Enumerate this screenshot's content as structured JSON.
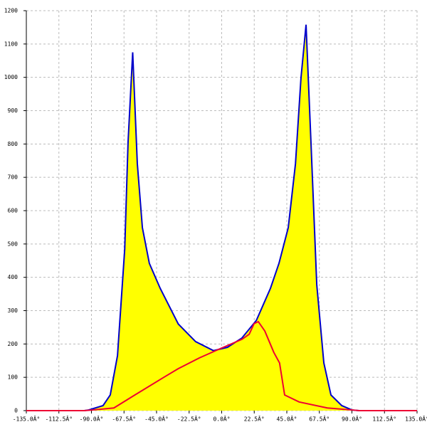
{
  "chart_data": {
    "type": "area-line",
    "xlim": [
      -135,
      135
    ],
    "ylim": [
      0,
      1200
    ],
    "xticks": [
      {
        "value": -135,
        "label": "-135.0Â°"
      },
      {
        "value": -112.5,
        "label": "-112.5Â°"
      },
      {
        "value": -90,
        "label": "-90.0Â°"
      },
      {
        "value": -67.5,
        "label": "-67.5Â°"
      },
      {
        "value": -45,
        "label": "-45.0Â°"
      },
      {
        "value": -22.5,
        "label": "-22.5Â°"
      },
      {
        "value": 0,
        "label": "0.0Â°"
      },
      {
        "value": 22.5,
        "label": "22.5Â°"
      },
      {
        "value": 45,
        "label": "45.0Â°"
      },
      {
        "value": 67.5,
        "label": "67.5Â°"
      },
      {
        "value": 90,
        "label": "90.0Â°"
      },
      {
        "value": 112.5,
        "label": "112.5Â°"
      },
      {
        "value": 135,
        "label": "135.0Â°"
      }
    ],
    "yticks": [
      0,
      100,
      200,
      300,
      400,
      500,
      600,
      700,
      800,
      900,
      1000,
      1100,
      1200
    ],
    "grid": true,
    "series": [
      {
        "color": "#0000cc",
        "fill": "#ffff00",
        "x": [
          -95,
          -92,
          -82,
          -77,
          -72,
          -67,
          -64.7,
          -61.5,
          -58.3,
          -54.8,
          -50,
          -42.5,
          -30,
          -18,
          -5.7,
          4,
          14,
          24,
          33.7,
          39.6,
          46,
          51,
          54.8,
          58.3,
          61.7,
          65.7,
          70.6,
          75.5,
          83,
          90,
          95
        ],
        "values": [
          0,
          2,
          15,
          47,
          165,
          485,
          805,
          1075,
          741,
          549,
          442,
          367,
          260,
          207,
          180,
          190,
          218,
          271,
          367,
          442,
          549,
          741,
          998,
          1158,
          805,
          378,
          143,
          47,
          15,
          2,
          0
        ]
      },
      {
        "color": "#ee0033",
        "x": [
          -135,
          -95,
          -89,
          -74.5,
          -60,
          -40,
          -30,
          -15.5,
          -1,
          14,
          19,
          22.4,
          25.3,
          29.8,
          36,
          40,
          43.5,
          53.5,
          73,
          90,
          95,
          135
        ],
        "values": [
          0,
          0,
          2,
          8,
          47,
          100,
          126,
          158,
          186,
          214,
          229,
          261,
          267,
          239,
          175,
          143,
          47,
          26,
          8,
          2,
          0,
          0
        ]
      }
    ]
  }
}
